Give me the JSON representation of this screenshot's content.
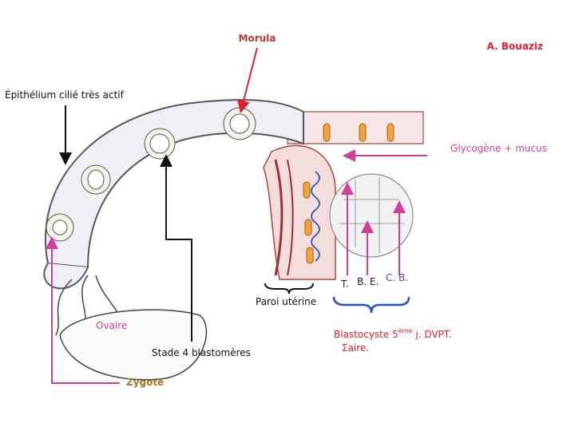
{
  "header": {
    "title": "Morula",
    "author": "A. Bouaziz"
  },
  "labels": {
    "epithelium": "Épithélium cilié très actif",
    "glycogene": "Glycogène + mucus",
    "t": "T.",
    "be": "B. E.",
    "cb": "C. B.",
    "paroi": "Paroi utérine",
    "ovaire": "Ovaire",
    "stade4": "Stade 4 blastomères",
    "zygote": "Zygote",
    "blastocyste": {
      "main": "Blastocyste 5",
      "sup": "ème",
      "rest": "j. DVPT.",
      "line2": "Σaire."
    }
  }
}
